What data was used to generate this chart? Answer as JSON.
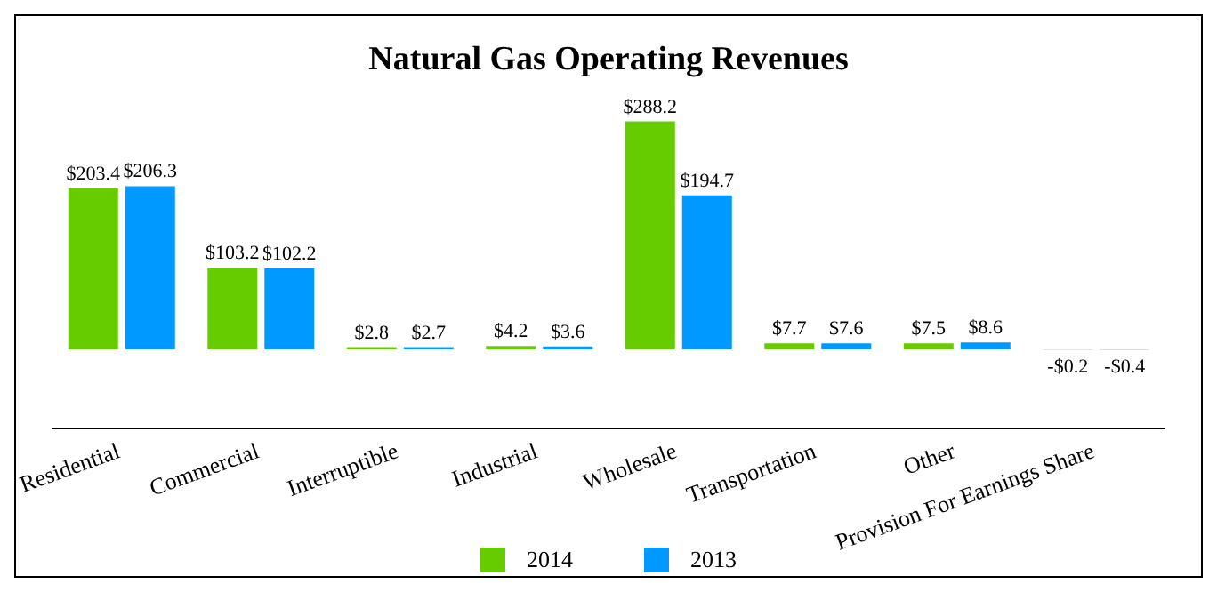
{
  "chart_data": {
    "type": "bar",
    "title": "Natural Gas Operating Revenues",
    "categories": [
      "Residential",
      "Commercial",
      "Interruptible",
      "Industrial",
      "Wholesale",
      "Transportation",
      "Other",
      "Provision For Earnings Share"
    ],
    "series": [
      {
        "name": "2014",
        "color": "#66cc00",
        "values": [
          203.4,
          103.2,
          2.8,
          4.2,
          288.2,
          7.7,
          7.5,
          -0.2
        ],
        "value_labels": [
          "$203.4",
          "$103.2",
          "$2.8",
          "$4.2",
          "$288.2",
          "$7.7",
          "$7.5",
          "-$0.2"
        ]
      },
      {
        "name": "2013",
        "color": "#0099ff",
        "values": [
          206.3,
          102.2,
          2.7,
          3.6,
          194.7,
          7.6,
          8.6,
          -0.4
        ],
        "value_labels": [
          "$206.3",
          "$102.2",
          "$2.7",
          "$3.6",
          "$194.7",
          "$7.6",
          "$8.6",
          "-$0.4"
        ]
      }
    ],
    "legend": "bottom",
    "grid": false
  }
}
